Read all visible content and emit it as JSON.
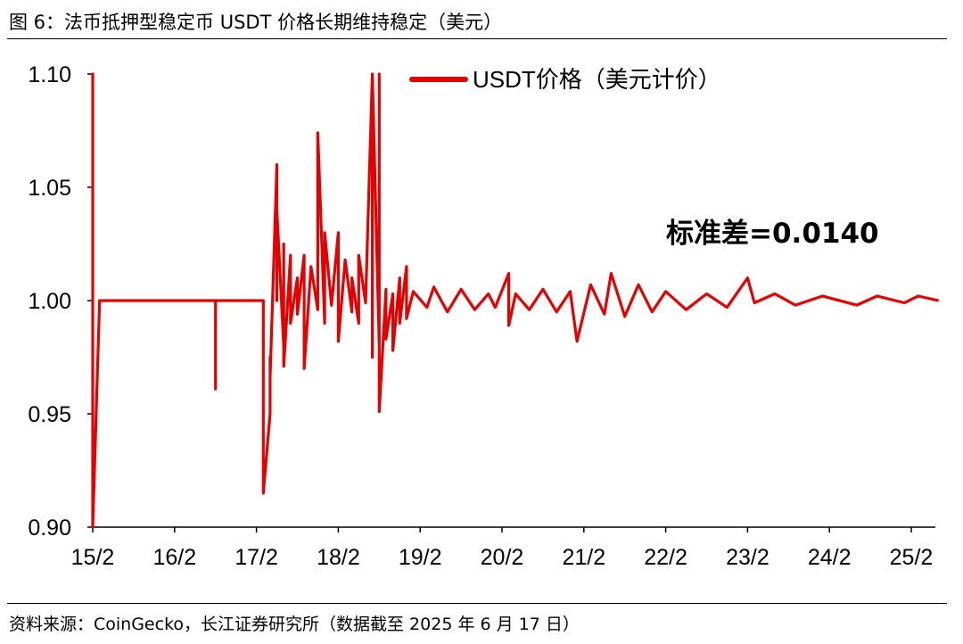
{
  "figure": {
    "title": "图 6：法币抵押型稳定币 USDT 价格长期维持稳定（美元）",
    "source": "资料来源：CoinGecko，长江证券研究所（数据截至 2025 年 6 月 17 日）"
  },
  "chart_data": {
    "type": "line",
    "title": "",
    "xlabel": "",
    "ylabel": "",
    "ylim": [
      0.9,
      1.1
    ],
    "yticks": [
      "1.10",
      "1.05",
      "1.00",
      "0.95",
      "0.90"
    ],
    "xticks": [
      "15/2",
      "16/2",
      "17/2",
      "18/2",
      "19/2",
      "20/2",
      "21/2",
      "22/2",
      "23/2",
      "24/2",
      "25/2"
    ],
    "grid": false,
    "legend_position": "top-right",
    "annotation": "标准差=0.0140",
    "series": [
      {
        "name": "USDT价格（美元计价）",
        "color": "#e60000",
        "points": [
          [
            "2015-02",
            1.0
          ],
          [
            "2015-02",
            1.1
          ],
          [
            "2015-02",
            0.9
          ],
          [
            "2015-03",
            1.0
          ],
          [
            "2015-06",
            1.0
          ],
          [
            "2016-01",
            1.0
          ],
          [
            "2016-06",
            1.0
          ],
          [
            "2016-08",
            1.0
          ],
          [
            "2016-08",
            0.961
          ],
          [
            "2016-08",
            1.0
          ],
          [
            "2017-01",
            1.0
          ],
          [
            "2017-03",
            1.0
          ],
          [
            "2017-03",
            0.98
          ],
          [
            "2017-03",
            0.915
          ],
          [
            "2017-04",
            0.95
          ],
          [
            "2017-04",
            0.975
          ],
          [
            "2017-04",
            0.966
          ],
          [
            "2017-05",
            1.06
          ],
          [
            "2017-05",
            1.0
          ],
          [
            "2017-05",
            1.04
          ],
          [
            "2017-06",
            0.98
          ],
          [
            "2017-06",
            1.025
          ],
          [
            "2017-06",
            0.971
          ],
          [
            "2017-07",
            1.02
          ],
          [
            "2017-07",
            0.99
          ],
          [
            "2017-08",
            1.01
          ],
          [
            "2017-08",
            0.994
          ],
          [
            "2017-09",
            1.02
          ],
          [
            "2017-09",
            0.97
          ],
          [
            "2017-10",
            1.015
          ],
          [
            "2017-11",
            0.996
          ],
          [
            "2017-11",
            1.074
          ],
          [
            "2017-12",
            0.99
          ],
          [
            "2017-12",
            1.03
          ],
          [
            "2018-01",
            0.998
          ],
          [
            "2018-02",
            1.03
          ],
          [
            "2018-02",
            0.982
          ],
          [
            "2018-03",
            1.018
          ],
          [
            "2018-04",
            0.995
          ],
          [
            "2018-04",
            1.01
          ],
          [
            "2018-05",
            0.99
          ],
          [
            "2018-05",
            1.02
          ],
          [
            "2018-06",
            0.999
          ],
          [
            "2018-07",
            1.1
          ],
          [
            "2018-07",
            0.975
          ],
          [
            "2018-07",
            1.1
          ],
          [
            "2018-08",
            0.98
          ],
          [
            "2018-08",
            1.1
          ],
          [
            "2018-08",
            0.951
          ],
          [
            "2018-09",
            1.005
          ],
          [
            "2018-09",
            0.983
          ],
          [
            "2018-10",
            1.003
          ],
          [
            "2018-10",
            0.978
          ],
          [
            "2018-11",
            1.01
          ],
          [
            "2018-11",
            0.99
          ],
          [
            "2018-12",
            1.015
          ],
          [
            "2018-12",
            0.992
          ],
          [
            "2019-01",
            1.004
          ],
          [
            "2019-03",
            0.997
          ],
          [
            "2019-04",
            1.006
          ],
          [
            "2019-06",
            0.995
          ],
          [
            "2019-08",
            1.005
          ],
          [
            "2019-10",
            0.996
          ],
          [
            "2019-12",
            1.003
          ],
          [
            "2020-01",
            0.997
          ],
          [
            "2020-03",
            1.012
          ],
          [
            "2020-03",
            0.989
          ],
          [
            "2020-04",
            1.003
          ],
          [
            "2020-06",
            0.996
          ],
          [
            "2020-08",
            1.005
          ],
          [
            "2020-10",
            0.995
          ],
          [
            "2020-12",
            1.004
          ],
          [
            "2021-01",
            0.982
          ],
          [
            "2021-03",
            1.007
          ],
          [
            "2021-05",
            0.994
          ],
          [
            "2021-06",
            1.012
          ],
          [
            "2021-08",
            0.993
          ],
          [
            "2021-10",
            1.007
          ],
          [
            "2021-12",
            0.995
          ],
          [
            "2022-02",
            1.004
          ],
          [
            "2022-05",
            0.996
          ],
          [
            "2022-08",
            1.003
          ],
          [
            "2022-11",
            0.997
          ],
          [
            "2023-02",
            1.01
          ],
          [
            "2023-03",
            0.999
          ],
          [
            "2023-06",
            1.003
          ],
          [
            "2023-09",
            0.998
          ],
          [
            "2024-01",
            1.002
          ],
          [
            "2024-06",
            0.998
          ],
          [
            "2024-09",
            1.002
          ],
          [
            "2025-01",
            0.999
          ],
          [
            "2025-03",
            1.002
          ],
          [
            "2025-06",
            1.0
          ]
        ]
      }
    ]
  }
}
